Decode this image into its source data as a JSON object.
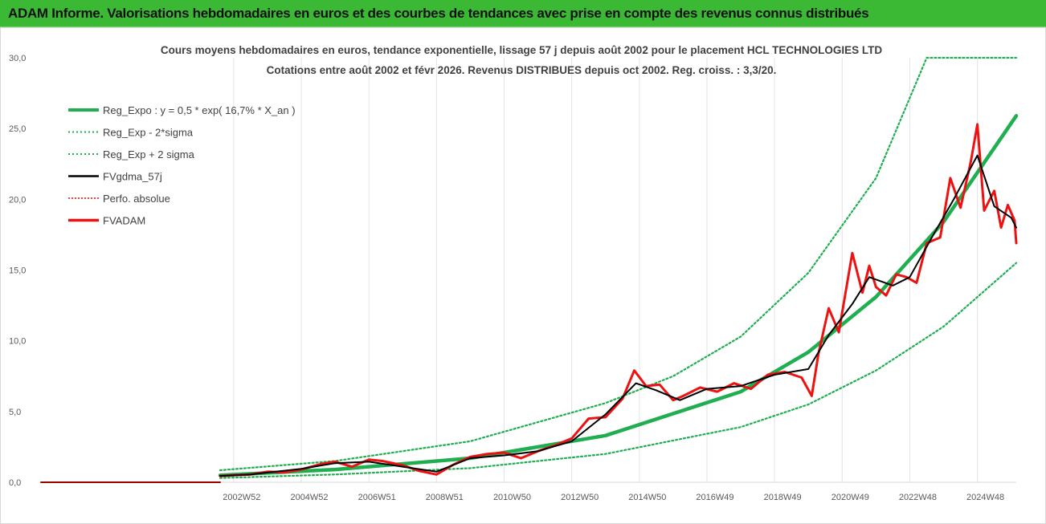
{
  "banner": {
    "title": "ADAM Informe. Valorisations hebdomadaires en euros et des courbes de tendances avec prise en compte des revenus connus distribués"
  },
  "colors": {
    "banner_bg": "#3cb934",
    "reg_expo": "#1fae50",
    "sigma_bands": "#1fae50",
    "fvgdma": "#000000",
    "perfo": "#ff0000",
    "fvadam": "#ee1111",
    "prefix_line": "#9e0000"
  },
  "chart_data": {
    "type": "line",
    "title": [
      "Cours moyens hebdomadaires en euros, tendance exponentielle, lissage 57 j depuis août 2002 pour le placement HCL TECHNOLOGIES LTD",
      "Cotations entre août 2002 et févr 2026. Revenus DISTRIBUES depuis oct 2002. Reg. croiss. : 3,3/20."
    ],
    "xlabel": "",
    "ylabel": "",
    "ylim": [
      0,
      30
    ],
    "yticks": [
      "0,0",
      "5,0",
      "10,0",
      "15,0",
      "20,0",
      "25,0",
      "30,0"
    ],
    "xlim": [
      1997.3,
      2026.15
    ],
    "xticks": [
      {
        "label": "2002W52",
        "x": 2003.0
      },
      {
        "label": "2004W52",
        "x": 2005.0
      },
      {
        "label": "2006W51",
        "x": 2007.0
      },
      {
        "label": "2008W51",
        "x": 2009.0
      },
      {
        "label": "2010W50",
        "x": 2011.0
      },
      {
        "label": "2012W50",
        "x": 2013.0
      },
      {
        "label": "2014W50",
        "x": 2015.0
      },
      {
        "label": "2016W49",
        "x": 2017.0
      },
      {
        "label": "2018W49",
        "x": 2019.0
      },
      {
        "label": "2020W49",
        "x": 2021.0
      },
      {
        "label": "2022W48",
        "x": 2023.0
      },
      {
        "label": "2024W48",
        "x": 2025.0
      }
    ],
    "grid": "vertical",
    "legend_position": "top-left",
    "series": [
      {
        "name": "Reg_Expo : y = 0,5 * exp( 16,7% *  X_an )",
        "style": "thick-solid",
        "x": [
          2002.6,
          2006.0,
          2010.0,
          2014.0,
          2018.0,
          2020.0,
          2022.0,
          2024.0,
          2026.15
        ],
        "y": [
          0.5,
          0.9,
          1.7,
          3.3,
          6.4,
          9.2,
          13.1,
          18.4,
          25.9
        ]
      },
      {
        "name": "Reg_Exp - 2*sigma",
        "style": "dotted",
        "x": [
          2002.6,
          2006.0,
          2010.0,
          2014.0,
          2018.0,
          2020.0,
          2022.0,
          2024.0,
          2026.15
        ],
        "y": [
          0.3,
          0.55,
          1.0,
          2.0,
          3.9,
          5.5,
          7.9,
          11.0,
          15.5
        ]
      },
      {
        "name": "Reg_Exp + 2 sigma",
        "style": "dotted",
        "x": [
          2002.6,
          2006.0,
          2010.0,
          2014.0,
          2016.0,
          2018.0,
          2020.0,
          2022.0,
          2023.5,
          2026.15
        ],
        "y": [
          0.85,
          1.5,
          2.9,
          5.6,
          7.5,
          10.3,
          14.8,
          21.5,
          30.0,
          30.0
        ]
      },
      {
        "name": "FVgdma_57j",
        "style": "solid",
        "x": [
          2002.6,
          2003.5,
          2005.0,
          2006.0,
          2007.0,
          2008.0,
          2009.0,
          2010.0,
          2011.0,
          2012.0,
          2013.0,
          2014.0,
          2014.9,
          2015.5,
          2016.2,
          2017.0,
          2018.0,
          2019.0,
          2020.0,
          2020.6,
          2021.3,
          2021.8,
          2022.5,
          2023.0,
          2023.7,
          2024.3,
          2025.0,
          2025.5,
          2026.0,
          2026.15
        ],
        "y": [
          0.45,
          0.55,
          0.95,
          1.35,
          1.45,
          1.1,
          0.75,
          1.7,
          1.9,
          2.2,
          2.9,
          4.8,
          7.0,
          6.5,
          5.8,
          6.6,
          6.8,
          7.6,
          8.0,
          10.4,
          12.6,
          14.5,
          13.9,
          14.5,
          17.5,
          20.0,
          23.1,
          19.5,
          18.7,
          18.0
        ]
      },
      {
        "name": "Perfo. absolue",
        "style": "dotted",
        "x": [
          1997.3,
          2002.6
        ],
        "y": [
          0,
          0
        ]
      },
      {
        "name": "FVADAM",
        "style": "thick-solid",
        "x": [
          2002.6,
          2003.0,
          2003.5,
          2004.0,
          2004.5,
          2005.0,
          2005.6,
          2006.0,
          2006.5,
          2007.0,
          2007.4,
          2008.0,
          2008.5,
          2009.0,
          2009.5,
          2010.0,
          2010.5,
          2011.0,
          2011.5,
          2012.0,
          2012.5,
          2013.0,
          2013.5,
          2014.0,
          2014.5,
          2014.85,
          2015.2,
          2015.6,
          2016.0,
          2016.3,
          2016.8,
          2017.3,
          2017.8,
          2018.3,
          2018.8,
          2019.3,
          2019.8,
          2020.1,
          2020.3,
          2020.6,
          2020.9,
          2021.3,
          2021.6,
          2021.8,
          2022.0,
          2022.3,
          2022.6,
          2022.9,
          2023.2,
          2023.5,
          2023.9,
          2024.2,
          2024.5,
          2024.8,
          2025.0,
          2025.2,
          2025.5,
          2025.7,
          2025.9,
          2026.1,
          2026.15
        ],
        "y": [
          0.45,
          0.5,
          0.55,
          0.75,
          0.7,
          0.9,
          1.3,
          1.45,
          1.1,
          1.6,
          1.5,
          1.2,
          0.8,
          0.55,
          1.25,
          1.8,
          2.0,
          2.1,
          1.7,
          2.2,
          2.6,
          3.1,
          4.5,
          4.6,
          5.9,
          7.9,
          6.8,
          6.9,
          5.8,
          6.1,
          6.7,
          6.4,
          7.0,
          6.6,
          7.6,
          7.8,
          7.4,
          6.1,
          9.1,
          12.3,
          10.6,
          16.2,
          13.4,
          15.3,
          13.8,
          13.2,
          14.7,
          14.5,
          14.1,
          16.9,
          17.3,
          21.5,
          19.4,
          22.6,
          25.3,
          19.2,
          20.6,
          18.0,
          19.6,
          18.5,
          16.9
        ]
      }
    ]
  }
}
